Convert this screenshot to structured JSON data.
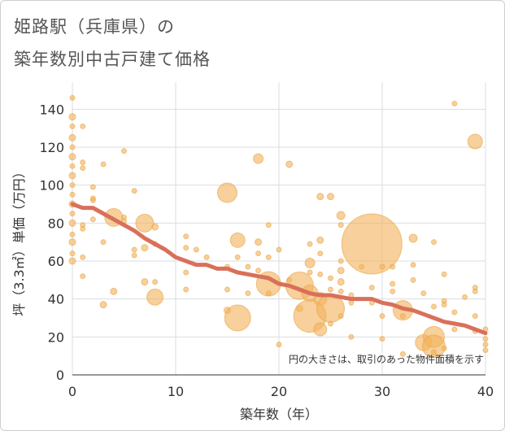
{
  "title_line1": "姫路駅（兵庫県）の",
  "title_line2": "築年数別中古戸建て価格",
  "chart_data": {
    "type": "scatter",
    "xlabel": "築年数（年）",
    "ylabel": "坪（3.3㎡）単価（万円）",
    "xlim": [
      0,
      40
    ],
    "ylim": [
      0,
      150
    ],
    "x_ticks": [
      0,
      10,
      20,
      30,
      40
    ],
    "y_ticks": [
      0,
      20,
      40,
      60,
      80,
      100,
      120,
      140
    ],
    "grid": true,
    "note": "円の大きさは、取引のあった物件面積を示す",
    "bubble_color": "#f2b35e",
    "trend_color": "#d9705a",
    "bubbles": [
      {
        "x": 0,
        "y": 146,
        "s": 3
      },
      {
        "x": 0,
        "y": 136,
        "s": 4
      },
      {
        "x": 0,
        "y": 131,
        "s": 3
      },
      {
        "x": 0,
        "y": 125,
        "s": 4
      },
      {
        "x": 0,
        "y": 120,
        "s": 3
      },
      {
        "x": 0,
        "y": 115,
        "s": 4
      },
      {
        "x": 0,
        "y": 110,
        "s": 3
      },
      {
        "x": 0,
        "y": 105,
        "s": 4
      },
      {
        "x": 0,
        "y": 100,
        "s": 3
      },
      {
        "x": 0,
        "y": 95,
        "s": 3
      },
      {
        "x": 0,
        "y": 90,
        "s": 4
      },
      {
        "x": 0,
        "y": 85,
        "s": 3
      },
      {
        "x": 0,
        "y": 80,
        "s": 4
      },
      {
        "x": 0,
        "y": 74,
        "s": 3
      },
      {
        "x": 0,
        "y": 70,
        "s": 4
      },
      {
        "x": 0,
        "y": 64,
        "s": 3
      },
      {
        "x": 0,
        "y": 60,
        "s": 4
      },
      {
        "x": 1,
        "y": 131,
        "s": 3
      },
      {
        "x": 1,
        "y": 112,
        "s": 3
      },
      {
        "x": 1,
        "y": 109,
        "s": 3
      },
      {
        "x": 1,
        "y": 79,
        "s": 3
      },
      {
        "x": 1,
        "y": 77,
        "s": 3
      },
      {
        "x": 1,
        "y": 62,
        "s": 3
      },
      {
        "x": 1,
        "y": 52,
        "s": 3
      },
      {
        "x": 2,
        "y": 99,
        "s": 3
      },
      {
        "x": 2,
        "y": 93,
        "s": 3
      },
      {
        "x": 2,
        "y": 92,
        "s": 3
      },
      {
        "x": 2,
        "y": 82,
        "s": 3
      },
      {
        "x": 3,
        "y": 111,
        "s": 3
      },
      {
        "x": 3,
        "y": 70,
        "s": 3
      },
      {
        "x": 3,
        "y": 37,
        "s": 4
      },
      {
        "x": 4,
        "y": 83,
        "s": 11
      },
      {
        "x": 4,
        "y": 44,
        "s": 4
      },
      {
        "x": 5,
        "y": 118,
        "s": 3
      },
      {
        "x": 5,
        "y": 83,
        "s": 3
      },
      {
        "x": 5,
        "y": 81,
        "s": 3
      },
      {
        "x": 6,
        "y": 97,
        "s": 3
      },
      {
        "x": 6,
        "y": 66,
        "s": 3
      },
      {
        "x": 6,
        "y": 63,
        "s": 3
      },
      {
        "x": 7,
        "y": 80,
        "s": 11
      },
      {
        "x": 7,
        "y": 67,
        "s": 4
      },
      {
        "x": 7,
        "y": 49,
        "s": 4
      },
      {
        "x": 8,
        "y": 78,
        "s": 4
      },
      {
        "x": 8,
        "y": 69,
        "s": 3
      },
      {
        "x": 8,
        "y": 49,
        "s": 3
      },
      {
        "x": 8,
        "y": 41,
        "s": 10
      },
      {
        "x": 11,
        "y": 73,
        "s": 3
      },
      {
        "x": 11,
        "y": 67,
        "s": 3
      },
      {
        "x": 11,
        "y": 54,
        "s": 3
      },
      {
        "x": 11,
        "y": 45,
        "s": 3
      },
      {
        "x": 12,
        "y": 66,
        "s": 3
      },
      {
        "x": 13,
        "y": 62,
        "s": 3
      },
      {
        "x": 15,
        "y": 96,
        "s": 12
      },
      {
        "x": 15,
        "y": 57,
        "s": 3
      },
      {
        "x": 15,
        "y": 45,
        "s": 3
      },
      {
        "x": 15,
        "y": 34,
        "s": 4
      },
      {
        "x": 16,
        "y": 71,
        "s": 9
      },
      {
        "x": 16,
        "y": 62,
        "s": 3
      },
      {
        "x": 16,
        "y": 30,
        "s": 16
      },
      {
        "x": 17,
        "y": 57,
        "s": 3
      },
      {
        "x": 17,
        "y": 43,
        "s": 3
      },
      {
        "x": 18,
        "y": 114,
        "s": 6
      },
      {
        "x": 18,
        "y": 70,
        "s": 4
      },
      {
        "x": 18,
        "y": 64,
        "s": 3
      },
      {
        "x": 18,
        "y": 55,
        "s": 3
      },
      {
        "x": 19,
        "y": 79,
        "s": 3
      },
      {
        "x": 19,
        "y": 62,
        "s": 3
      },
      {
        "x": 19,
        "y": 48,
        "s": 15
      },
      {
        "x": 19,
        "y": 43,
        "s": 3
      },
      {
        "x": 20,
        "y": 66,
        "s": 3
      },
      {
        "x": 20,
        "y": 16,
        "s": 3
      },
      {
        "x": 21,
        "y": 111,
        "s": 4
      },
      {
        "x": 21,
        "y": 50,
        "s": 3
      },
      {
        "x": 22,
        "y": 47,
        "s": 17
      },
      {
        "x": 22,
        "y": 35,
        "s": 4
      },
      {
        "x": 23,
        "y": 69,
        "s": 3
      },
      {
        "x": 23,
        "y": 59,
        "s": 6
      },
      {
        "x": 23,
        "y": 54,
        "s": 3
      },
      {
        "x": 23,
        "y": 43,
        "s": 10
      },
      {
        "x": 23,
        "y": 31,
        "s": 20
      },
      {
        "x": 24,
        "y": 94,
        "s": 4
      },
      {
        "x": 24,
        "y": 71,
        "s": 4
      },
      {
        "x": 24,
        "y": 64,
        "s": 3
      },
      {
        "x": 24,
        "y": 53,
        "s": 3
      },
      {
        "x": 24,
        "y": 40,
        "s": 8
      },
      {
        "x": 24,
        "y": 24,
        "s": 8
      },
      {
        "x": 25,
        "y": 94,
        "s": 4
      },
      {
        "x": 25,
        "y": 51,
        "s": 3
      },
      {
        "x": 25,
        "y": 45,
        "s": 3
      },
      {
        "x": 25,
        "y": 35,
        "s": 17
      },
      {
        "x": 25,
        "y": 27,
        "s": 3
      },
      {
        "x": 26,
        "y": 84,
        "s": 5
      },
      {
        "x": 26,
        "y": 79,
        "s": 3
      },
      {
        "x": 26,
        "y": 60,
        "s": 3
      },
      {
        "x": 26,
        "y": 55,
        "s": 4
      },
      {
        "x": 26,
        "y": 49,
        "s": 4
      },
      {
        "x": 26,
        "y": 44,
        "s": 3
      },
      {
        "x": 26,
        "y": 31,
        "s": 3
      },
      {
        "x": 27,
        "y": 42,
        "s": 3
      },
      {
        "x": 27,
        "y": 38,
        "s": 3
      },
      {
        "x": 27,
        "y": 20,
        "s": 3
      },
      {
        "x": 28,
        "y": 57,
        "s": 3
      },
      {
        "x": 29,
        "y": 69,
        "s": 37
      },
      {
        "x": 29,
        "y": 46,
        "s": 3
      },
      {
        "x": 29,
        "y": 38,
        "s": 3
      },
      {
        "x": 30,
        "y": 57,
        "s": 3
      },
      {
        "x": 30,
        "y": 31,
        "s": 3
      },
      {
        "x": 30,
        "y": 19,
        "s": 3
      },
      {
        "x": 31,
        "y": 57,
        "s": 3
      },
      {
        "x": 31,
        "y": 48,
        "s": 3
      },
      {
        "x": 31,
        "y": 44,
        "s": 3
      },
      {
        "x": 32,
        "y": 34,
        "s": 12
      },
      {
        "x": 32,
        "y": 31,
        "s": 3
      },
      {
        "x": 32,
        "y": 11,
        "s": 3
      },
      {
        "x": 33,
        "y": 72,
        "s": 5
      },
      {
        "x": 33,
        "y": 58,
        "s": 3
      },
      {
        "x": 33,
        "y": 50,
        "s": 3
      },
      {
        "x": 34,
        "y": 43,
        "s": 3
      },
      {
        "x": 34,
        "y": 17,
        "s": 10
      },
      {
        "x": 35,
        "y": 70,
        "s": 3
      },
      {
        "x": 35,
        "y": 36,
        "s": 3
      },
      {
        "x": 35,
        "y": 20,
        "s": 13
      },
      {
        "x": 35,
        "y": 15,
        "s": 14
      },
      {
        "x": 35,
        "y": 12,
        "s": 3
      },
      {
        "x": 36,
        "y": 53,
        "s": 3
      },
      {
        "x": 36,
        "y": 39,
        "s": 3
      },
      {
        "x": 36,
        "y": 37,
        "s": 3
      },
      {
        "x": 36,
        "y": 14,
        "s": 3
      },
      {
        "x": 37,
        "y": 143,
        "s": 3
      },
      {
        "x": 37,
        "y": 33,
        "s": 3
      },
      {
        "x": 37,
        "y": 24,
        "s": 3
      },
      {
        "x": 38,
        "y": 41,
        "s": 3
      },
      {
        "x": 39,
        "y": 123,
        "s": 9
      },
      {
        "x": 39,
        "y": 46,
        "s": 3
      },
      {
        "x": 39,
        "y": 44,
        "s": 3
      },
      {
        "x": 39,
        "y": 31,
        "s": 3
      },
      {
        "x": 39,
        "y": 23,
        "s": 3
      },
      {
        "x": 40,
        "y": 24,
        "s": 3
      },
      {
        "x": 40,
        "y": 19,
        "s": 3
      },
      {
        "x": 40,
        "y": 16,
        "s": 3
      },
      {
        "x": 40,
        "y": 13,
        "s": 3
      }
    ],
    "trend": [
      {
        "x": 0,
        "y": 90
      },
      {
        "x": 1,
        "y": 88
      },
      {
        "x": 2,
        "y": 88
      },
      {
        "x": 3,
        "y": 85
      },
      {
        "x": 4,
        "y": 82
      },
      {
        "x": 5,
        "y": 79
      },
      {
        "x": 6,
        "y": 76
      },
      {
        "x": 7,
        "y": 72
      },
      {
        "x": 8,
        "y": 69
      },
      {
        "x": 9,
        "y": 66
      },
      {
        "x": 10,
        "y": 62
      },
      {
        "x": 11,
        "y": 60
      },
      {
        "x": 12,
        "y": 58
      },
      {
        "x": 13,
        "y": 58
      },
      {
        "x": 14,
        "y": 56
      },
      {
        "x": 15,
        "y": 56
      },
      {
        "x": 16,
        "y": 54
      },
      {
        "x": 17,
        "y": 53
      },
      {
        "x": 18,
        "y": 52
      },
      {
        "x": 19,
        "y": 51
      },
      {
        "x": 20,
        "y": 48
      },
      {
        "x": 21,
        "y": 47
      },
      {
        "x": 22,
        "y": 45
      },
      {
        "x": 23,
        "y": 43
      },
      {
        "x": 24,
        "y": 42
      },
      {
        "x": 25,
        "y": 42
      },
      {
        "x": 26,
        "y": 41
      },
      {
        "x": 27,
        "y": 40
      },
      {
        "x": 28,
        "y": 40
      },
      {
        "x": 29,
        "y": 40
      },
      {
        "x": 30,
        "y": 38
      },
      {
        "x": 31,
        "y": 37
      },
      {
        "x": 32,
        "y": 35
      },
      {
        "x": 33,
        "y": 34
      },
      {
        "x": 34,
        "y": 32
      },
      {
        "x": 35,
        "y": 30
      },
      {
        "x": 36,
        "y": 28
      },
      {
        "x": 37,
        "y": 27
      },
      {
        "x": 38,
        "y": 26
      },
      {
        "x": 39,
        "y": 24
      },
      {
        "x": 40,
        "y": 22
      }
    ]
  }
}
